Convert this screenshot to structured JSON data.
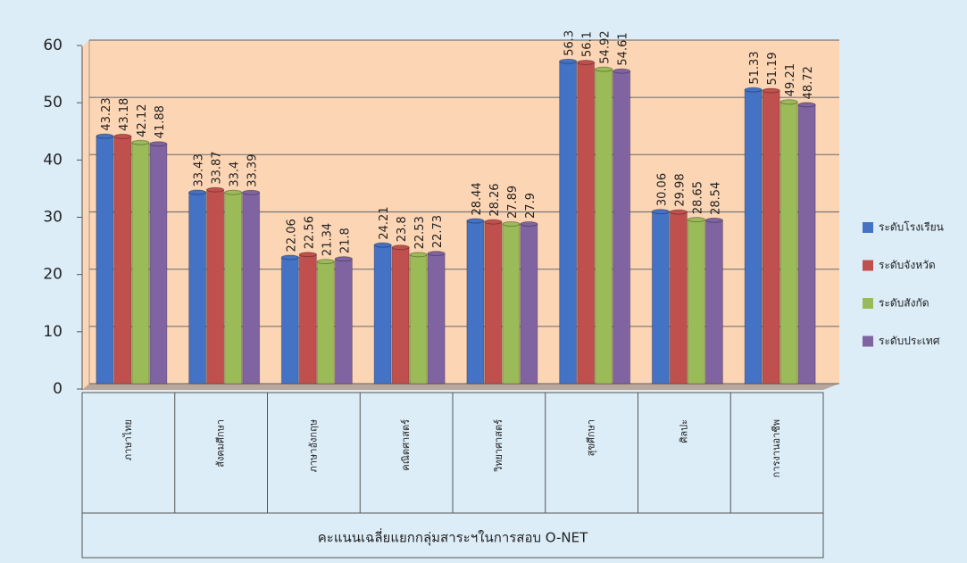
{
  "chart_data": {
    "type": "bar",
    "title": "คะแนนเฉลี่ยแยกกลุ่มสาระฯในการสอบ O-NET",
    "categories": [
      "ภาษาไทย",
      "สังคมศึกษา",
      "ภาษาอังกฤษ",
      "คณิตศาสตร์",
      "วิทยาศาสตร์",
      "สุขศึกษา",
      "ศิลปะ",
      "การงานอาชีพ"
    ],
    "series": [
      {
        "name": "ระดับโรงเรียน",
        "color": "#4472c4",
        "values": [
          43.23,
          33.43,
          22.06,
          24.21,
          28.44,
          56.3,
          30.06,
          51.33
        ]
      },
      {
        "name": "ระดับจังหวัด",
        "color": "#c0504d",
        "values": [
          43.18,
          33.87,
          22.56,
          23.8,
          28.26,
          56.1,
          29.98,
          51.19
        ]
      },
      {
        "name": "ระดับสังกัด",
        "color": "#9bbb59",
        "values": [
          42.12,
          33.4,
          21.34,
          22.53,
          27.89,
          54.92,
          28.65,
          49.21
        ]
      },
      {
        "name": "ระดับประเทศ",
        "color": "#8064a2",
        "values": [
          41.88,
          33.39,
          21.8,
          22.73,
          27.9,
          54.61,
          28.54,
          48.72
        ]
      }
    ],
    "ylim": [
      0,
      60
    ],
    "yticks": [
      0,
      10,
      20,
      30,
      40,
      50,
      60
    ],
    "grid": true,
    "legend": "right"
  }
}
